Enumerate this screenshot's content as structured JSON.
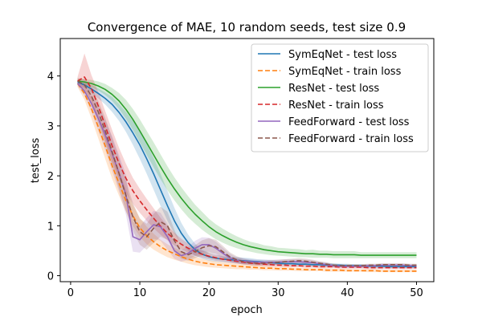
{
  "chart_data": {
    "type": "line",
    "title": "Convergence of MAE, 10 random seeds, test size 0.9",
    "xlabel": "epoch",
    "ylabel": "test_loss",
    "xlim": [
      -1.5,
      52.5
    ],
    "ylim": [
      -0.12,
      4.75
    ],
    "xticks": [
      0,
      10,
      20,
      30,
      40,
      50
    ],
    "yticks": [
      0,
      1,
      2,
      3,
      4
    ],
    "grid": false,
    "legend_position": "top-right",
    "x": [
      1,
      2,
      3,
      4,
      5,
      6,
      7,
      8,
      9,
      10,
      11,
      12,
      13,
      14,
      15,
      16,
      17,
      18,
      19,
      20,
      21,
      22,
      23,
      24,
      25,
      26,
      27,
      28,
      29,
      30,
      31,
      32,
      33,
      34,
      35,
      36,
      37,
      38,
      39,
      40,
      41,
      42,
      43,
      44,
      45,
      46,
      47,
      48,
      49,
      50
    ],
    "series": [
      {
        "name": "SymEqNet - test loss",
        "color": "#1f77b4",
        "dash": "solid",
        "values": [
          3.88,
          3.82,
          3.74,
          3.65,
          3.55,
          3.43,
          3.27,
          3.08,
          2.86,
          2.62,
          2.34,
          2.04,
          1.72,
          1.4,
          1.1,
          0.85,
          0.66,
          0.52,
          0.43,
          0.38,
          0.35,
          0.33,
          0.32,
          0.31,
          0.3,
          0.29,
          0.28,
          0.27,
          0.26,
          0.25,
          0.24,
          0.24,
          0.23,
          0.23,
          0.22,
          0.22,
          0.21,
          0.21,
          0.21,
          0.2,
          0.2,
          0.2,
          0.19,
          0.19,
          0.19,
          0.18,
          0.18,
          0.18,
          0.18,
          0.18
        ],
        "lower": [
          3.85,
          3.77,
          3.66,
          3.55,
          3.43,
          3.28,
          3.1,
          2.88,
          2.62,
          2.34,
          2.04,
          1.72,
          1.4,
          1.1,
          0.84,
          0.64,
          0.5,
          0.4,
          0.34,
          0.3,
          0.28,
          0.27,
          0.26,
          0.25,
          0.24,
          0.23,
          0.23,
          0.22,
          0.21,
          0.21,
          0.2,
          0.2,
          0.19,
          0.19,
          0.18,
          0.18,
          0.18,
          0.17,
          0.17,
          0.17,
          0.17,
          0.16,
          0.16,
          0.16,
          0.16,
          0.15,
          0.15,
          0.15,
          0.15,
          0.15
        ],
        "upper": [
          3.92,
          3.87,
          3.82,
          3.75,
          3.67,
          3.58,
          3.44,
          3.28,
          3.1,
          2.9,
          2.64,
          2.36,
          2.04,
          1.7,
          1.36,
          1.06,
          0.82,
          0.64,
          0.52,
          0.46,
          0.42,
          0.39,
          0.38,
          0.37,
          0.36,
          0.35,
          0.33,
          0.32,
          0.31,
          0.3,
          0.29,
          0.28,
          0.27,
          0.27,
          0.26,
          0.26,
          0.25,
          0.25,
          0.24,
          0.24,
          0.23,
          0.23,
          0.22,
          0.22,
          0.22,
          0.21,
          0.21,
          0.21,
          0.21,
          0.21
        ]
      },
      {
        "name": "SymEqNet - train loss",
        "color": "#ff7f0e",
        "dash": "dashed",
        "values": [
          3.85,
          3.65,
          3.35,
          2.98,
          2.6,
          2.2,
          1.85,
          1.5,
          1.2,
          0.96,
          0.8,
          0.68,
          0.58,
          0.5,
          0.44,
          0.38,
          0.33,
          0.29,
          0.26,
          0.24,
          0.22,
          0.21,
          0.2,
          0.19,
          0.18,
          0.17,
          0.16,
          0.15,
          0.15,
          0.14,
          0.14,
          0.13,
          0.13,
          0.12,
          0.12,
          0.12,
          0.11,
          0.11,
          0.11,
          0.1,
          0.1,
          0.1,
          0.1,
          0.1,
          0.09,
          0.09,
          0.09,
          0.09,
          0.09,
          0.09
        ],
        "lower": [
          3.78,
          3.52,
          3.15,
          2.75,
          2.34,
          1.94,
          1.6,
          1.28,
          1.0,
          0.78,
          0.63,
          0.52,
          0.44,
          0.37,
          0.32,
          0.28,
          0.24,
          0.21,
          0.19,
          0.17,
          0.16,
          0.15,
          0.14,
          0.13,
          0.13,
          0.12,
          0.12,
          0.11,
          0.11,
          0.1,
          0.1,
          0.1,
          0.09,
          0.09,
          0.09,
          0.09,
          0.08,
          0.08,
          0.08,
          0.08,
          0.08,
          0.08,
          0.07,
          0.07,
          0.07,
          0.07,
          0.07,
          0.07,
          0.07,
          0.07
        ],
        "upper": [
          3.92,
          3.78,
          3.55,
          3.22,
          2.86,
          2.46,
          2.1,
          1.74,
          1.42,
          1.16,
          0.98,
          0.84,
          0.72,
          0.63,
          0.56,
          0.49,
          0.43,
          0.38,
          0.34,
          0.31,
          0.29,
          0.27,
          0.26,
          0.24,
          0.23,
          0.22,
          0.21,
          0.2,
          0.19,
          0.18,
          0.18,
          0.17,
          0.16,
          0.16,
          0.15,
          0.15,
          0.15,
          0.14,
          0.14,
          0.14,
          0.13,
          0.13,
          0.13,
          0.13,
          0.12,
          0.12,
          0.12,
          0.12,
          0.12,
          0.12
        ]
      },
      {
        "name": "ResNet - test loss",
        "color": "#2ca02c",
        "dash": "solid",
        "values": [
          3.9,
          3.88,
          3.85,
          3.8,
          3.73,
          3.63,
          3.5,
          3.33,
          3.13,
          2.9,
          2.66,
          2.42,
          2.18,
          1.95,
          1.74,
          1.55,
          1.38,
          1.23,
          1.1,
          0.98,
          0.88,
          0.8,
          0.73,
          0.67,
          0.62,
          0.58,
          0.55,
          0.52,
          0.5,
          0.48,
          0.47,
          0.46,
          0.45,
          0.44,
          0.44,
          0.43,
          0.43,
          0.42,
          0.42,
          0.42,
          0.42,
          0.41,
          0.41,
          0.41,
          0.41,
          0.41,
          0.41,
          0.41,
          0.41,
          0.41
        ],
        "lower": [
          3.86,
          3.83,
          3.78,
          3.71,
          3.62,
          3.5,
          3.34,
          3.14,
          2.92,
          2.67,
          2.42,
          2.17,
          1.93,
          1.71,
          1.51,
          1.33,
          1.17,
          1.04,
          0.92,
          0.82,
          0.73,
          0.66,
          0.6,
          0.55,
          0.51,
          0.48,
          0.45,
          0.43,
          0.41,
          0.4,
          0.39,
          0.38,
          0.37,
          0.37,
          0.36,
          0.36,
          0.36,
          0.35,
          0.35,
          0.35,
          0.35,
          0.35,
          0.35,
          0.35,
          0.35,
          0.35,
          0.35,
          0.35,
          0.35,
          0.35
        ],
        "upper": [
          3.94,
          3.93,
          3.92,
          3.89,
          3.84,
          3.76,
          3.66,
          3.52,
          3.34,
          3.13,
          2.9,
          2.67,
          2.43,
          2.19,
          1.97,
          1.77,
          1.59,
          1.42,
          1.28,
          1.14,
          1.03,
          0.94,
          0.86,
          0.79,
          0.73,
          0.68,
          0.65,
          0.61,
          0.59,
          0.56,
          0.55,
          0.54,
          0.53,
          0.51,
          0.52,
          0.5,
          0.5,
          0.49,
          0.49,
          0.49,
          0.49,
          0.47,
          0.47,
          0.47,
          0.47,
          0.47,
          0.47,
          0.47,
          0.47,
          0.47
        ]
      },
      {
        "name": "ResNet - train loss",
        "color": "#d62728",
        "dash": "dashed",
        "values": [
          3.9,
          3.98,
          3.75,
          3.4,
          3.0,
          2.6,
          2.25,
          1.95,
          1.7,
          1.5,
          1.32,
          1.15,
          0.99,
          0.85,
          0.73,
          0.63,
          0.55,
          0.48,
          0.43,
          0.39,
          0.36,
          0.33,
          0.31,
          0.29,
          0.27,
          0.25,
          0.24,
          0.23,
          0.22,
          0.21,
          0.21,
          0.2,
          0.2,
          0.19,
          0.19,
          0.18,
          0.18,
          0.18,
          0.17,
          0.17,
          0.17,
          0.17,
          0.16,
          0.16,
          0.16,
          0.16,
          0.16,
          0.16,
          0.16,
          0.16
        ],
        "lower": [
          3.82,
          3.75,
          3.5,
          3.12,
          2.7,
          2.28,
          1.94,
          1.66,
          1.44,
          1.26,
          1.1,
          0.95,
          0.82,
          0.71,
          0.61,
          0.53,
          0.46,
          0.4,
          0.36,
          0.33,
          0.3,
          0.28,
          0.26,
          0.24,
          0.23,
          0.21,
          0.2,
          0.19,
          0.18,
          0.18,
          0.17,
          0.17,
          0.17,
          0.16,
          0.16,
          0.15,
          0.15,
          0.15,
          0.14,
          0.14,
          0.14,
          0.14,
          0.13,
          0.13,
          0.13,
          0.13,
          0.13,
          0.13,
          0.13,
          0.13
        ],
        "upper": [
          3.98,
          4.45,
          4.02,
          3.68,
          3.3,
          2.92,
          2.56,
          2.24,
          1.96,
          1.74,
          1.54,
          1.35,
          1.16,
          1.0,
          0.86,
          0.74,
          0.64,
          0.56,
          0.5,
          0.45,
          0.42,
          0.38,
          0.36,
          0.34,
          0.31,
          0.29,
          0.28,
          0.27,
          0.26,
          0.24,
          0.25,
          0.23,
          0.23,
          0.22,
          0.22,
          0.21,
          0.21,
          0.21,
          0.2,
          0.2,
          0.2,
          0.2,
          0.19,
          0.19,
          0.19,
          0.19,
          0.19,
          0.19,
          0.19,
          0.19
        ]
      },
      {
        "name": "FeedForward - test loss",
        "color": "#9467bd",
        "dash": "solid",
        "values": [
          3.85,
          3.7,
          3.45,
          3.15,
          2.82,
          2.45,
          2.05,
          1.62,
          0.78,
          0.72,
          0.88,
          1.02,
          0.98,
          0.78,
          0.5,
          0.4,
          0.45,
          0.55,
          0.62,
          0.62,
          0.55,
          0.45,
          0.36,
          0.31,
          0.29,
          0.28,
          0.27,
          0.27,
          0.27,
          0.27,
          0.28,
          0.28,
          0.28,
          0.27,
          0.26,
          0.24,
          0.22,
          0.2,
          0.19,
          0.19,
          0.19,
          0.19,
          0.2,
          0.2,
          0.21,
          0.21,
          0.21,
          0.21,
          0.2,
          0.2
        ],
        "lower": [
          3.8,
          3.6,
          3.28,
          2.9,
          2.52,
          2.1,
          1.68,
          1.22,
          0.48,
          0.46,
          0.6,
          0.74,
          0.7,
          0.52,
          0.34,
          0.28,
          0.32,
          0.4,
          0.47,
          0.48,
          0.42,
          0.34,
          0.28,
          0.25,
          0.23,
          0.23,
          0.22,
          0.22,
          0.22,
          0.22,
          0.23,
          0.23,
          0.23,
          0.22,
          0.21,
          0.2,
          0.18,
          0.17,
          0.16,
          0.16,
          0.16,
          0.16,
          0.17,
          0.17,
          0.18,
          0.18,
          0.18,
          0.18,
          0.17,
          0.17
        ],
        "upper": [
          3.9,
          3.8,
          3.62,
          3.4,
          3.12,
          2.8,
          2.42,
          2.02,
          1.08,
          0.98,
          1.16,
          1.3,
          1.26,
          1.04,
          0.66,
          0.52,
          0.58,
          0.7,
          0.77,
          0.76,
          0.68,
          0.56,
          0.44,
          0.37,
          0.35,
          0.33,
          0.32,
          0.32,
          0.32,
          0.32,
          0.33,
          0.33,
          0.33,
          0.32,
          0.31,
          0.28,
          0.26,
          0.23,
          0.22,
          0.22,
          0.22,
          0.22,
          0.23,
          0.23,
          0.24,
          0.24,
          0.24,
          0.24,
          0.23,
          0.23
        ]
      },
      {
        "name": "FeedForward - train loss",
        "color": "#8c564b",
        "dash": "dashed",
        "values": [
          3.9,
          3.82,
          3.6,
          3.28,
          2.9,
          2.48,
          2.05,
          1.6,
          1.18,
          0.88,
          0.78,
          0.95,
          1.08,
          1.0,
          0.7,
          0.48,
          0.42,
          0.48,
          0.56,
          0.6,
          0.58,
          0.48,
          0.38,
          0.32,
          0.28,
          0.26,
          0.25,
          0.25,
          0.26,
          0.27,
          0.28,
          0.29,
          0.3,
          0.29,
          0.27,
          0.25,
          0.23,
          0.21,
          0.2,
          0.2,
          0.2,
          0.2,
          0.21,
          0.21,
          0.22,
          0.22,
          0.22,
          0.22,
          0.21,
          0.21
        ],
        "lower": [
          3.84,
          3.7,
          3.42,
          3.06,
          2.64,
          2.2,
          1.74,
          1.3,
          0.9,
          0.62,
          0.52,
          0.66,
          0.78,
          0.72,
          0.48,
          0.34,
          0.3,
          0.35,
          0.41,
          0.45,
          0.44,
          0.36,
          0.29,
          0.25,
          0.22,
          0.21,
          0.2,
          0.2,
          0.21,
          0.22,
          0.23,
          0.24,
          0.25,
          0.24,
          0.22,
          0.21,
          0.19,
          0.18,
          0.17,
          0.17,
          0.17,
          0.17,
          0.18,
          0.18,
          0.19,
          0.19,
          0.19,
          0.19,
          0.18,
          0.18
        ],
        "upper": [
          3.96,
          3.94,
          3.78,
          3.5,
          3.16,
          2.76,
          2.36,
          1.9,
          1.46,
          1.14,
          1.04,
          1.24,
          1.38,
          1.28,
          0.92,
          0.62,
          0.54,
          0.61,
          0.71,
          0.75,
          0.72,
          0.6,
          0.47,
          0.39,
          0.34,
          0.31,
          0.3,
          0.3,
          0.31,
          0.32,
          0.33,
          0.34,
          0.35,
          0.34,
          0.32,
          0.29,
          0.27,
          0.24,
          0.23,
          0.23,
          0.23,
          0.23,
          0.24,
          0.24,
          0.25,
          0.25,
          0.25,
          0.25,
          0.24,
          0.24
        ]
      }
    ]
  }
}
